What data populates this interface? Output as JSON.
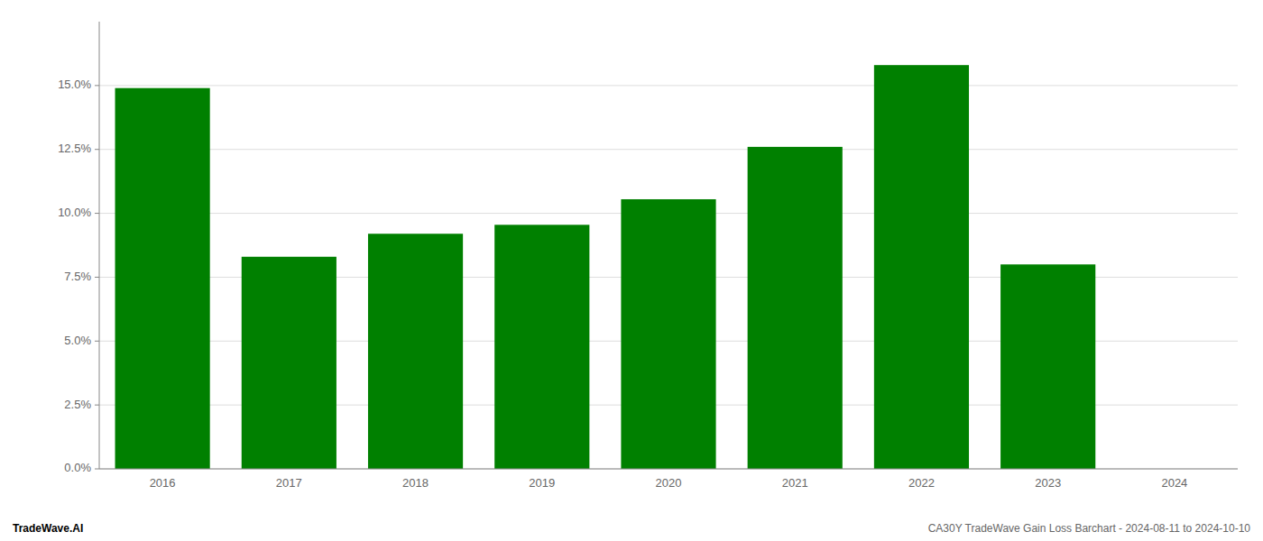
{
  "chart_data": {
    "type": "bar",
    "title": "CA30Y TradeWave Gain Loss Barchart - 2024-08-11 to 2024-10-10",
    "annotations": [
      "TradeWave.AI"
    ],
    "categories": [
      "2016",
      "2017",
      "2018",
      "2019",
      "2020",
      "2021",
      "2022",
      "2023",
      "2024"
    ],
    "values": [
      0.149,
      0.083,
      0.092,
      0.0955,
      0.1055,
      0.126,
      0.158,
      0.08,
      null
    ],
    "color": "#008000",
    "ylim": [
      0,
      0.175
    ],
    "yticks": [
      {
        "value": 0.0,
        "label": "0.0%"
      },
      {
        "value": 0.025,
        "label": "2.5%"
      },
      {
        "value": 0.05,
        "label": "5.0%"
      },
      {
        "value": 0.075,
        "label": "7.5%"
      },
      {
        "value": 0.1,
        "label": "10.0%"
      },
      {
        "value": 0.125,
        "label": "12.5%"
      },
      {
        "value": 0.15,
        "label": "15.0%"
      }
    ],
    "grid": true
  }
}
